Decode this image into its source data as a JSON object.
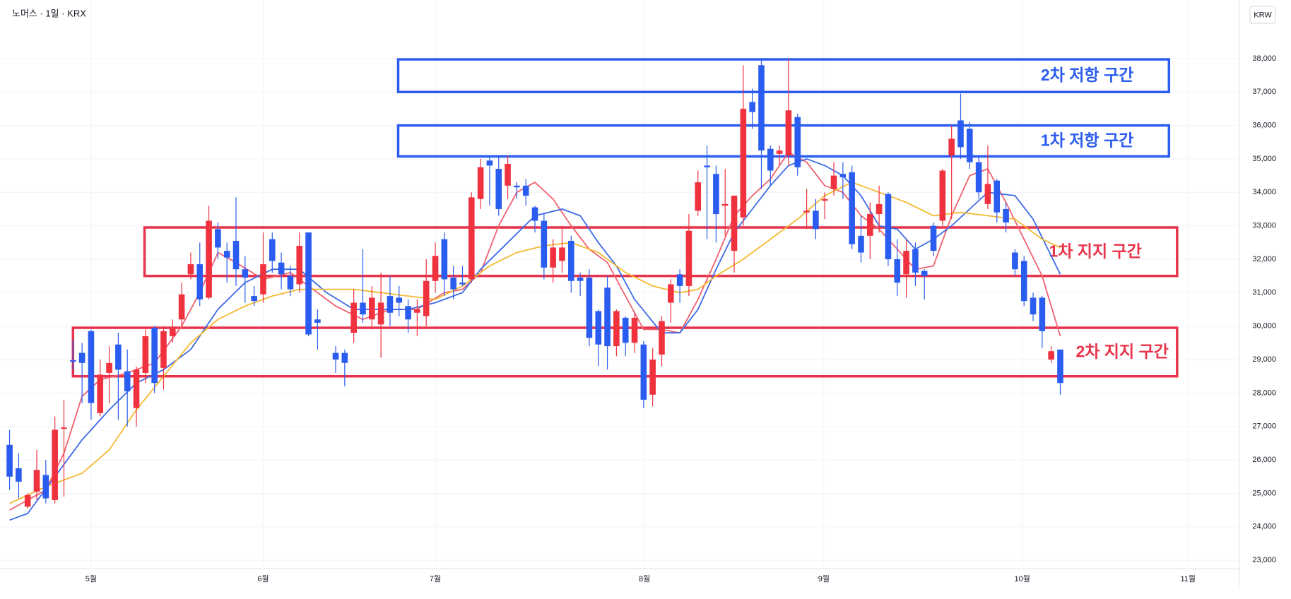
{
  "chart_data": {
    "type": "candlestick",
    "title": "노머스 · 1일 · KRX",
    "currency": "KRW",
    "x": [
      0,
      1,
      2,
      3,
      4,
      5,
      6,
      7,
      8,
      9,
      10,
      11,
      12,
      13,
      14,
      15,
      16,
      17,
      18,
      19,
      20,
      21,
      22,
      23,
      24,
      25,
      26,
      27,
      28,
      29,
      30,
      31,
      32,
      33,
      34,
      36,
      37,
      38,
      39,
      40,
      41,
      42,
      43,
      44,
      45,
      46,
      47,
      48,
      49,
      50,
      51,
      52,
      53,
      54,
      55,
      56,
      57,
      58,
      59,
      60,
      61,
      62,
      63,
      64,
      65,
      66,
      67,
      68,
      69,
      70,
      71,
      72,
      73,
      74,
      75,
      76,
      77,
      78,
      79,
      80,
      81,
      82,
      83,
      84,
      85,
      86,
      87,
      88,
      89,
      90,
      91,
      92,
      93,
      94,
      95,
      96,
      97,
      98,
      99,
      100,
      101,
      102,
      103,
      104,
      105,
      106,
      107,
      108,
      109,
      110,
      111,
      112,
      113,
      114,
      115,
      116
    ],
    "open": [
      26450,
      25750,
      24600,
      25050,
      25550,
      24800,
      26950,
      28980,
      29200,
      29850,
      27400,
      28600,
      29450,
      28650,
      27550,
      28600,
      29950,
      28750,
      29700,
      30200,
      31550,
      31850,
      30850,
      32900,
      32250,
      32550,
      31700,
      30900,
      30950,
      32600,
      31900,
      31500,
      31250,
      32800,
      30200,
      29200,
      29200,
      29800,
      30700,
      30200,
      30050,
      30900,
      30850,
      30600,
      30400,
      30300,
      31350,
      32600,
      31450,
      31300,
      31400,
      33800,
      34950,
      34700,
      34200,
      34200,
      34200,
      33550,
      33150,
      31750,
      31950,
      32550,
      31450,
      31450,
      30450,
      31150,
      29400,
      30250,
      29500,
      29450,
      27950,
      29150,
      30700,
      31550,
      31200,
      33450,
      34800,
      34550,
      33600,
      32250,
      33250,
      36700,
      37800,
      35300,
      35150,
      35100,
      36250,
      33400,
      33450,
      33750,
      34100,
      34550,
      34600,
      32700,
      32700,
      33350,
      33950,
      32000,
      31550,
      32300,
      31650,
      33000,
      33150,
      35100,
      36150,
      35900,
      34900,
      33650,
      34350,
      33500,
      32200,
      31950,
      30850,
      30850,
      29000,
      29300
    ],
    "high": [
      26900,
      26200,
      25000,
      26300,
      26000,
      27300,
      27800,
      29600,
      29500,
      29900,
      29000,
      29400,
      29800,
      29300,
      28800,
      29900,
      30000,
      30000,
      30200,
      31300,
      32200,
      32500,
      33600,
      33100,
      32500,
      33850,
      32100,
      31200,
      32800,
      32800,
      32200,
      31800,
      32800,
      32800,
      30500,
      29400,
      29300,
      31100,
      32300,
      31200,
      31600,
      31500,
      31200,
      30800,
      30800,
      32000,
      32500,
      32800,
      31800,
      31800,
      34000,
      35000,
      35100,
      35100,
      35100,
      34300,
      34400,
      33600,
      33350,
      32600,
      33000,
      32700,
      31600,
      31700,
      30500,
      31500,
      30500,
      30300,
      30400,
      29550,
      29350,
      30300,
      31400,
      31700,
      33350,
      34650,
      35400,
      34800,
      34700,
      33900,
      37800,
      37100,
      38000,
      35400,
      35400,
      38000,
      36350,
      34100,
      33800,
      34000,
      34900,
      34900,
      34800,
      33300,
      33700,
      34200,
      34000,
      32600,
      32600,
      32500,
      31700,
      33100,
      34700,
      36000,
      36950,
      36100,
      35100,
      35400,
      34400,
      33700,
      32300,
      32100,
      31000,
      30900,
      29400,
      29300
    ],
    "low": [
      25100,
      24850,
      24550,
      24800,
      24700,
      24700,
      24900,
      28700,
      27700,
      27200,
      27300,
      27700,
      27200,
      27000,
      27000,
      28300,
      28000,
      28100,
      29500,
      30000,
      31400,
      30600,
      30800,
      32000,
      31300,
      31200,
      30700,
      30600,
      30700,
      31600,
      31100,
      30900,
      31000,
      29700,
      29300,
      28600,
      28200,
      29500,
      30100,
      29900,
      29050,
      30000,
      30300,
      29800,
      29700,
      30000,
      31000,
      30900,
      30800,
      31200,
      31300,
      33500,
      33600,
      33300,
      33800,
      33800,
      33600,
      32800,
      31400,
      31300,
      31600,
      31000,
      30900,
      29400,
      28800,
      28700,
      29100,
      29100,
      29200,
      27550,
      27600,
      28800,
      30100,
      30700,
      30900,
      33300,
      32600,
      32500,
      32700,
      31600,
      33000,
      35900,
      34100,
      34200,
      34800,
      34800,
      34500,
      32900,
      32600,
      33200,
      33900,
      33800,
      32300,
      31900,
      32000,
      32800,
      31800,
      30900,
      30850,
      31200,
      30800,
      32100,
      33000,
      33200,
      35000,
      34700,
      33800,
      33500,
      33100,
      32800,
      31500,
      30600,
      30150,
      29350,
      28900,
      27950
    ],
    "close": [
      25500,
      25350,
      24950,
      25700,
      24850,
      26900,
      26970,
      28950,
      28900,
      27700,
      28550,
      28900,
      28700,
      28050,
      28700,
      29700,
      28300,
      29850,
      29950,
      30950,
      31850,
      30800,
      33150,
      32350,
      32050,
      31700,
      31450,
      30750,
      31850,
      31950,
      31550,
      31100,
      32400,
      29750,
      30100,
      29000,
      28900,
      30700,
      30350,
      30850,
      30700,
      30400,
      30700,
      30200,
      30500,
      31350,
      32100,
      31400,
      31100,
      31250,
      33850,
      34750,
      34800,
      33500,
      34850,
      34150,
      33900,
      33150,
      31750,
      32350,
      32350,
      31350,
      31350,
      29650,
      29450,
      29400,
      30450,
      29500,
      30250,
      27800,
      29000,
      30150,
      31250,
      31200,
      32850,
      34300,
      34750,
      33350,
      33650,
      33900,
      36500,
      36400,
      35250,
      34650,
      35250,
      36450,
      34750,
      33450,
      32900,
      33800,
      34500,
      34450,
      32450,
      32200,
      33350,
      33650,
      32000,
      31300,
      32250,
      31600,
      31500,
      32250,
      34650,
      35600,
      35350,
      34900,
      34000,
      34250,
      33400,
      33100,
      31700,
      30750,
      30350,
      29850,
      29250,
      28300
    ],
    "up_color": "#f0323f",
    "down_color": "#2b5cf0",
    "moving_averages": [
      {
        "color": "#f0606e",
        "x": [
          0,
          4,
          6,
          8,
          10,
          13,
          16,
          19,
          21,
          23,
          25,
          28,
          31,
          33,
          36,
          39,
          42,
          45,
          48,
          50,
          52,
          54,
          56,
          58,
          60,
          62,
          64,
          66,
          68,
          70,
          72,
          74,
          76,
          78,
          80,
          82,
          84,
          86,
          88,
          90,
          92,
          94,
          96,
          98,
          100,
          102,
          104,
          106,
          108,
          110,
          112,
          114,
          116
        ],
        "values": [
          24500,
          25100,
          26200,
          27900,
          28400,
          28600,
          28900,
          30000,
          31000,
          32200,
          31900,
          31400,
          31600,
          31200,
          30600,
          30200,
          30500,
          30500,
          31000,
          31100,
          31600,
          33000,
          34000,
          34300,
          33800,
          33000,
          32300,
          31900,
          30900,
          29900,
          29900,
          29800,
          30800,
          32000,
          33300,
          33900,
          34400,
          35200,
          34900,
          34200,
          34000,
          33300,
          32900,
          32300,
          31700,
          31800,
          33300,
          34500,
          34700,
          33700,
          32600,
          31500,
          29700
        ]
      },
      {
        "color": "#3d6ae6",
        "x": [
          0,
          2,
          5,
          8,
          11,
          14,
          17,
          20,
          23,
          26,
          29,
          32,
          35,
          38,
          41,
          44,
          47,
          50,
          52,
          55,
          58,
          61,
          63,
          65,
          67,
          69,
          72,
          74,
          76,
          78,
          80,
          82,
          84,
          86,
          88,
          90,
          92,
          94,
          96,
          98,
          100,
          102,
          104,
          106,
          108,
          111,
          113,
          116
        ],
        "values": [
          24200,
          24400,
          25500,
          26600,
          27500,
          28300,
          28700,
          29300,
          30500,
          31300,
          31700,
          31700,
          31000,
          30500,
          30500,
          30500,
          30700,
          31000,
          31700,
          32500,
          33300,
          33500,
          33300,
          32500,
          31800,
          30800,
          29800,
          29800,
          30500,
          31700,
          32800,
          33500,
          34200,
          34800,
          35000,
          34800,
          34500,
          33900,
          33000,
          32900,
          32300,
          32600,
          33000,
          33500,
          34000,
          33900,
          33200,
          31550
        ]
      },
      {
        "color": "#f4b930",
        "x": [
          0,
          4,
          8,
          11,
          14,
          17,
          20,
          23,
          26,
          29,
          32,
          35,
          38,
          41,
          44,
          47,
          50,
          53,
          56,
          59,
          62,
          65,
          68,
          71,
          74,
          76,
          78,
          81,
          84,
          87,
          90,
          93,
          96,
          99,
          102,
          105,
          108,
          111,
          114,
          116
        ],
        "values": [
          24700,
          25200,
          25600,
          26300,
          27500,
          28500,
          29500,
          30200,
          30600,
          30900,
          31100,
          31100,
          31100,
          31000,
          30900,
          30800,
          31200,
          31800,
          32200,
          32400,
          32500,
          32200,
          31600,
          31200,
          31000,
          31100,
          31500,
          32000,
          32600,
          33200,
          33900,
          34300,
          34000,
          33700,
          33300,
          33400,
          33300,
          33200,
          32600,
          32350
        ]
      }
    ],
    "zones": [
      {
        "label": "2차 저항 구간",
        "top": 37975,
        "bottom": 37000,
        "x_start": 42.9,
        "x_end": 128,
        "color": "#2b5cf0"
      },
      {
        "label": "1차 저항 구간",
        "top": 36000,
        "bottom": 35075,
        "x_start": 42.9,
        "x_end": 128,
        "color": "#2b5cf0"
      },
      {
        "label": "1차 지지 구간",
        "top": 32950,
        "bottom": 31500,
        "x_start": 14.9,
        "x_end": 128.9,
        "color": "#e8334a"
      },
      {
        "label": "2차 지지 구간",
        "top": 29950,
        "bottom": 28500,
        "x_start": 7.0,
        "x_end": 128.9,
        "color": "#e8334a"
      }
    ],
    "xlim": [
      -0.2,
      135.7
    ],
    "xticks": [
      {
        "value": 9,
        "label": "5월"
      },
      {
        "value": 28,
        "label": "6월"
      },
      {
        "value": 47,
        "label": "7월"
      },
      {
        "value": 70.1,
        "label": "8월"
      },
      {
        "value": 89.9,
        "label": "9월"
      },
      {
        "value": 111.8,
        "label": "10월"
      },
      {
        "value": 130.1,
        "label": "11월"
      }
    ],
    "ylim": [
      22750,
      39750
    ],
    "yticks": [
      {
        "value": 23000,
        "label": "23,000"
      },
      {
        "value": 24000,
        "label": "24,000"
      },
      {
        "value": 25000,
        "label": "25,000"
      },
      {
        "value": 26000,
        "label": "26,000"
      },
      {
        "value": 27000,
        "label": "27,000"
      },
      {
        "value": 28000,
        "label": "28,000"
      },
      {
        "value": 29000,
        "label": "29,000"
      },
      {
        "value": 30000,
        "label": "30,000"
      },
      {
        "value": 31000,
        "label": "31,000"
      },
      {
        "value": 32000,
        "label": "32,000"
      },
      {
        "value": 33000,
        "label": "33,000"
      },
      {
        "value": 34000,
        "label": "34,000"
      },
      {
        "value": 35000,
        "label": "35,000"
      },
      {
        "value": 36000,
        "label": "36,000"
      },
      {
        "value": 37000,
        "label": "37,000"
      },
      {
        "value": 38000,
        "label": "38,000"
      }
    ],
    "grid": true
  }
}
